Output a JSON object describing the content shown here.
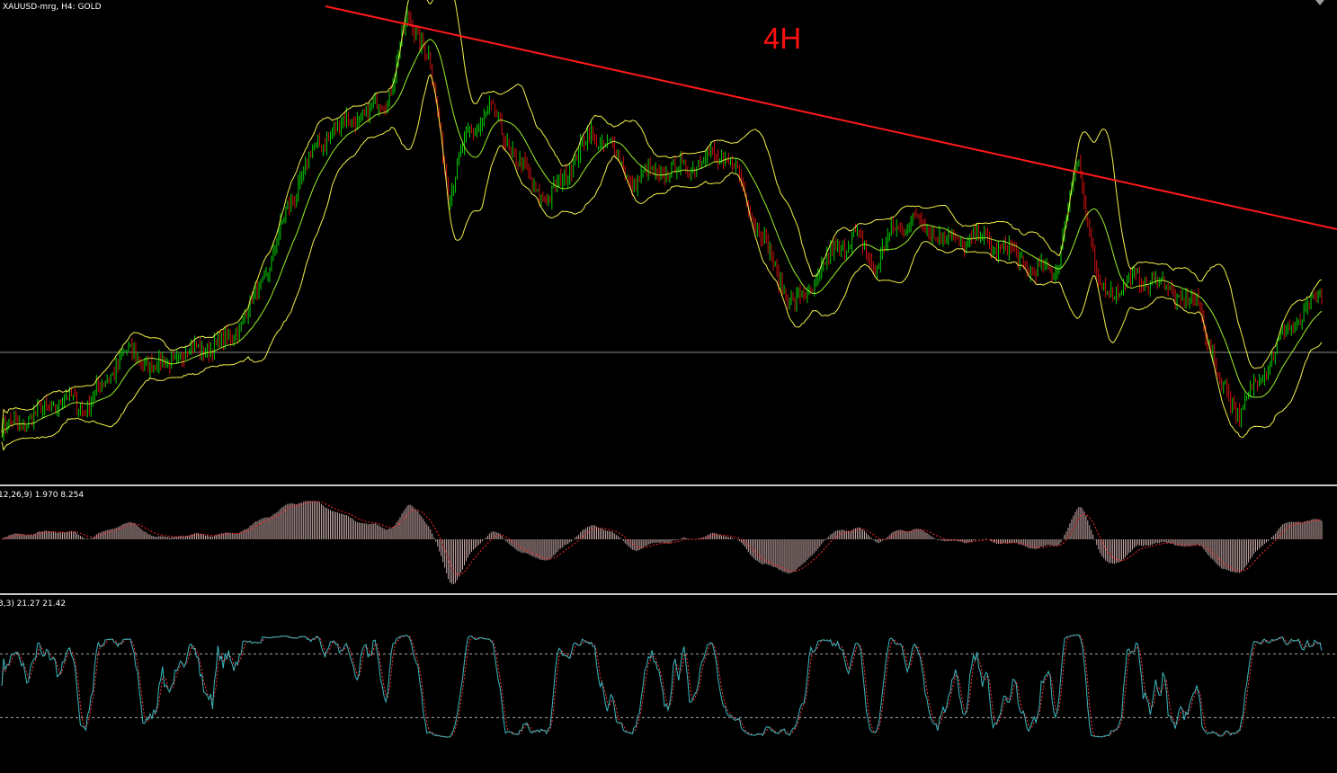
{
  "chart": {
    "title": "XAUUSD-mrg, H4:  GOLD",
    "timeframe_label": "4H",
    "colors": {
      "background": "#000000",
      "candle_up": "#00d000",
      "candle_down": "#d01010",
      "bollinger": "#f2f24a",
      "ma": "#9cf02a",
      "trendline": "#ff1a1a",
      "hline": "#8c8c8c",
      "macd_hist": "#c8a8a8",
      "macd_signal": "#ff2a2a",
      "stoch_main": "#3ab9c0",
      "stoch_signal": "#ff3a3a",
      "stoch_levels": "#a8a8a8"
    }
  },
  "macd": {
    "label": "12,26,9) 1.970 8.254"
  },
  "stochastic": {
    "label": "3,3) 21.27 21.42"
  },
  "chart_data": {
    "type": "line",
    "title": "XAUUSD-mrg, H4:  GOLD",
    "price_series_shape": [
      0.08,
      0.1,
      0.12,
      0.15,
      0.13,
      0.18,
      0.25,
      0.23,
      0.22,
      0.25,
      0.26,
      0.27,
      0.33,
      0.42,
      0.55,
      0.66,
      0.72,
      0.75,
      0.77,
      0.8,
      0.98,
      0.9,
      0.6,
      0.72,
      0.78,
      0.7,
      0.62,
      0.58,
      0.66,
      0.72,
      0.7,
      0.62,
      0.64,
      0.64,
      0.66,
      0.68,
      0.66,
      0.55,
      0.44,
      0.35,
      0.4,
      0.47,
      0.5,
      0.44,
      0.52,
      0.54,
      0.51,
      0.49,
      0.5,
      0.48,
      0.46,
      0.42,
      0.44,
      0.68,
      0.38,
      0.39,
      0.41,
      0.4,
      0.37,
      0.35,
      0.18,
      0.12,
      0.2,
      0.28,
      0.33,
      0.37
    ],
    "indicators": [
      "Bollinger Bands",
      "Moving Average",
      "MACD (12,26,9)",
      "Stochastic (3,3)"
    ],
    "macd_values": [
      1.97,
      8.254
    ],
    "stochastic_values": [
      21.27,
      21.42
    ],
    "stochastic_levels": [
      80,
      20
    ]
  }
}
